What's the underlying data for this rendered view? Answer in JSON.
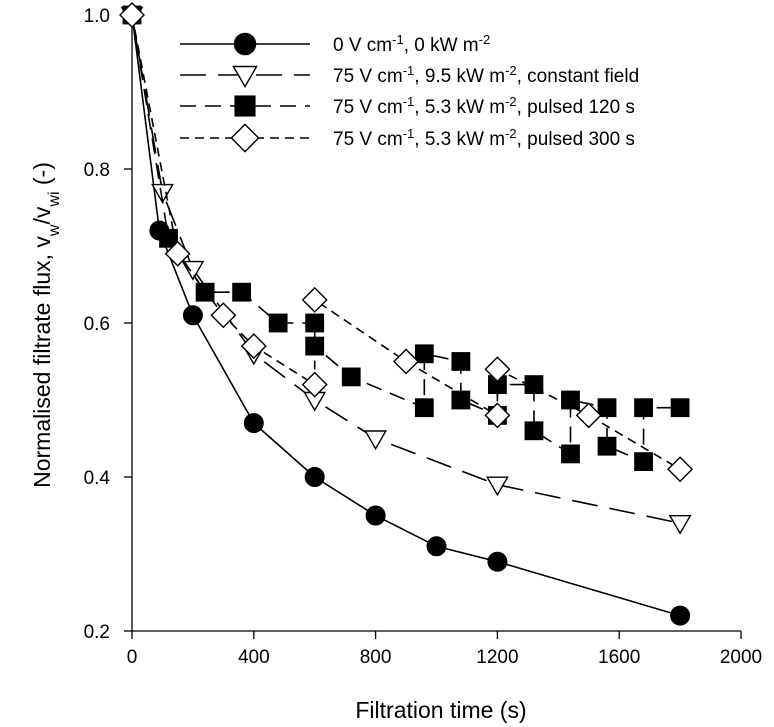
{
  "chart_data": {
    "type": "line",
    "xlabel": "Filtration time (s)",
    "ylabel": {
      "parts": [
        {
          "text": "Normalised filtrate flux, v",
          "shift": "none"
        },
        {
          "text": "w",
          "shift": "sub"
        },
        {
          "text": "/v",
          "shift": "none"
        },
        {
          "text": "wi",
          "shift": "sub"
        },
        {
          "text": " (-)",
          "shift": "none"
        }
      ]
    },
    "xlim": [
      0,
      2000
    ],
    "ylim": [
      0.2,
      1.0
    ],
    "xticks": [
      0,
      400,
      800,
      1200,
      1600,
      2000
    ],
    "yticks": [
      0.2,
      0.4,
      0.6,
      0.8,
      1.0
    ],
    "xtick_labels": [
      "0",
      "400",
      "800",
      "1200",
      "1600",
      "2000"
    ],
    "ytick_labels": [
      "0.2",
      "0.4",
      "0.6",
      "0.8",
      "1.0"
    ],
    "grid": false,
    "legend_position": "top-right",
    "series": [
      {
        "label_parts": [
          {
            "text": "0 V cm",
            "shift": "none"
          },
          {
            "text": "-1",
            "shift": "sup"
          },
          {
            "text": ", 0 kW m",
            "shift": "none"
          },
          {
            "text": "-2",
            "shift": "sup"
          }
        ],
        "marker": "circle",
        "fill": "#000000",
        "dash": "none",
        "x": [
          0,
          90,
          200,
          400,
          600,
          800,
          1000,
          1200,
          1800
        ],
        "y": [
          1.0,
          0.72,
          0.61,
          0.47,
          0.4,
          0.35,
          0.31,
          0.29,
          0.22
        ]
      },
      {
        "label_parts": [
          {
            "text": "75 V cm",
            "shift": "none"
          },
          {
            "text": "-1",
            "shift": "sup"
          },
          {
            "text": ", 9.5 kW m",
            "shift": "none"
          },
          {
            "text": "-2",
            "shift": "sup"
          },
          {
            "text": ", constant field",
            "shift": "none"
          }
        ],
        "marker": "triangle-down",
        "fill": "#ffffff",
        "dash": "long",
        "x": [
          0,
          100,
          200,
          400,
          600,
          800,
          1200,
          1800
        ],
        "y": [
          1.0,
          0.77,
          0.67,
          0.56,
          0.5,
          0.45,
          0.39,
          0.34
        ]
      },
      {
        "label_parts": [
          {
            "text": "75 V cm",
            "shift": "none"
          },
          {
            "text": "-1",
            "shift": "sup"
          },
          {
            "text": ", 5.3 kW m",
            "shift": "none"
          },
          {
            "text": "-2",
            "shift": "sup"
          },
          {
            "text": ", pulsed 120 s",
            "shift": "none"
          }
        ],
        "marker": "square",
        "fill": "#000000",
        "dash": "medium",
        "x": [
          0,
          120,
          240,
          360,
          480,
          600,
          600,
          720,
          960,
          960,
          1080,
          1080,
          1200,
          1200,
          1320,
          1320,
          1440,
          1440,
          1560,
          1560,
          1680,
          1680,
          1800
        ],
        "y": [
          1.0,
          0.71,
          0.64,
          0.64,
          0.6,
          0.6,
          0.57,
          0.53,
          0.49,
          0.56,
          0.55,
          0.5,
          0.48,
          0.52,
          0.52,
          0.46,
          0.43,
          0.5,
          0.49,
          0.44,
          0.42,
          0.49,
          0.49
        ]
      },
      {
        "label_parts": [
          {
            "text": "75 V cm",
            "shift": "none"
          },
          {
            "text": "-1",
            "shift": "sup"
          },
          {
            "text": ", 5.3 kW m",
            "shift": "none"
          },
          {
            "text": "-2",
            "shift": "sup"
          },
          {
            "text": ", pulsed 300 s",
            "shift": "none"
          }
        ],
        "marker": "diamond",
        "fill": "#ffffff",
        "dash": "short",
        "x": [
          0,
          150,
          300,
          400,
          600,
          600,
          900,
          1200,
          1200,
          1500,
          1800
        ],
        "y": [
          1.0,
          0.69,
          0.61,
          0.57,
          0.52,
          0.63,
          0.55,
          0.48,
          0.54,
          0.48,
          0.41
        ]
      }
    ]
  }
}
